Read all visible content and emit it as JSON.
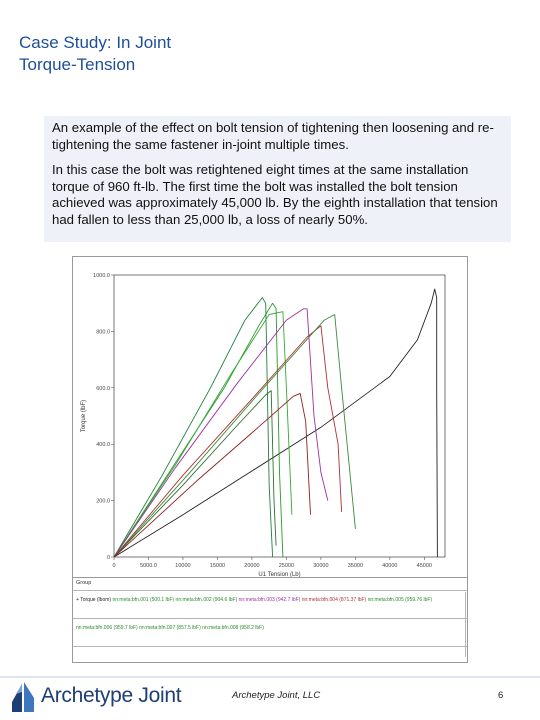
{
  "slide": {
    "title_line1": "Case Study: In Joint",
    "title_line2": "Torque-Tension",
    "paragraph1": "An example of the effect on bolt tension of tightening then loosening and re-tightening the same fastener in-joint multiple times.",
    "paragraph2": "In this case the bolt was retightened eight times at the same installation torque of 960 ft-lb. The first time the bolt was installed the bolt tension achieved was approximately 45,000 lb. By the eighth installation that tension had fallen to less than 25,000 lb, a loss of nearly 50%.",
    "footer_text": "Archetype Joint, LLC",
    "page_number": "6",
    "logo_text": "Archetype Joint"
  },
  "chart_data": {
    "type": "line",
    "ylabel": "Torque (lbF)",
    "xlabel": "U1 Tension (Lb)",
    "xlim": [
      0,
      48000
    ],
    "ylim": [
      0,
      1000
    ],
    "x_ticks": [
      "0",
      "5000.0",
      "10000",
      "15000",
      "20000",
      "25000",
      "30000",
      "35000",
      "40000",
      "45000"
    ],
    "y_ticks": [
      "0",
      "200.0",
      "400.0",
      "600.0",
      "800.0",
      "1000.0"
    ],
    "grid": false,
    "series": [
      {
        "color": "#222222",
        "points": [
          [
            0,
            0
          ],
          [
            10000,
            150
          ],
          [
            20000,
            305
          ],
          [
            30000,
            460
          ],
          [
            40000,
            640
          ],
          [
            44000,
            770
          ],
          [
            46000,
            900
          ],
          [
            46500,
            950
          ],
          [
            46800,
            920
          ],
          [
            46800,
            600
          ],
          [
            46900,
            0
          ]
        ]
      },
      {
        "color": "#2a9a2a",
        "points": [
          [
            0,
            0
          ],
          [
            8000,
            300
          ],
          [
            16000,
            600
          ],
          [
            21000,
            820
          ],
          [
            23000,
            900
          ],
          [
            23500,
            880
          ],
          [
            24000,
            300
          ],
          [
            24500,
            0
          ]
        ]
      },
      {
        "color": "#1f7f3f",
        "points": [
          [
            0,
            0
          ],
          [
            7000,
            290
          ],
          [
            14000,
            600
          ],
          [
            19000,
            840
          ],
          [
            21500,
            920
          ],
          [
            22000,
            900
          ],
          [
            22500,
            250
          ],
          [
            23000,
            0
          ]
        ]
      },
      {
        "color": "#33aa33",
        "points": [
          [
            0,
            0
          ],
          [
            9000,
            330
          ],
          [
            17000,
            650
          ],
          [
            22500,
            860
          ],
          [
            24500,
            870
          ],
          [
            25000,
            600
          ],
          [
            25800,
            150
          ]
        ]
      },
      {
        "color": "#a030a0",
        "points": [
          [
            0,
            0
          ],
          [
            9000,
            320
          ],
          [
            18000,
            620
          ],
          [
            25000,
            840
          ],
          [
            27500,
            880
          ],
          [
            28000,
            880
          ],
          [
            29000,
            500
          ],
          [
            30000,
            300
          ],
          [
            31000,
            200
          ]
        ]
      },
      {
        "color": "#b03030",
        "points": [
          [
            0,
            0
          ],
          [
            10000,
            290
          ],
          [
            20000,
            560
          ],
          [
            28000,
            780
          ],
          [
            30000,
            820
          ],
          [
            31000,
            600
          ],
          [
            32500,
            400
          ],
          [
            33000,
            160
          ]
        ]
      },
      {
        "color": "#3a8a3a",
        "points": [
          [
            0,
            0
          ],
          [
            11000,
            300
          ],
          [
            21000,
            580
          ],
          [
            30500,
            840
          ],
          [
            32000,
            860
          ],
          [
            33000,
            600
          ],
          [
            34000,
            350
          ],
          [
            35000,
            100
          ]
        ]
      },
      {
        "color": "#2f6f2f",
        "points": [
          [
            0,
            0
          ],
          [
            10000,
            255
          ],
          [
            18000,
            470
          ],
          [
            22000,
            575
          ],
          [
            22800,
            590
          ],
          [
            23200,
            200
          ],
          [
            23500,
            40
          ]
        ]
      },
      {
        "color": "#8c2020",
        "points": [
          [
            0,
            0
          ],
          [
            12000,
            270
          ],
          [
            20000,
            440
          ],
          [
            26000,
            570
          ],
          [
            27000,
            580
          ],
          [
            27800,
            480
          ],
          [
            28500,
            150
          ]
        ]
      }
    ],
    "legend": {
      "header": "Group",
      "row1": [
        "+ Torque (lbom)",
        "nn:meta:bfn.001 (500.1 lbF)",
        "nn:meta:bfn.002 (904.6 lbF)",
        "nn:meta:bfn.003 (942.7 lbF)",
        "nn:meta:bfn.004 (871.37 lbF)",
        "nn:meta:bfn.005 (959.76 lbF)"
      ],
      "row2": [
        "nn:meta:bfn.006 (959.7 lbF)",
        "nn:meta:bfn.007 (857.5 lbF)",
        "nn:meta:bfn.008 (958.2 lbF)"
      ]
    }
  }
}
